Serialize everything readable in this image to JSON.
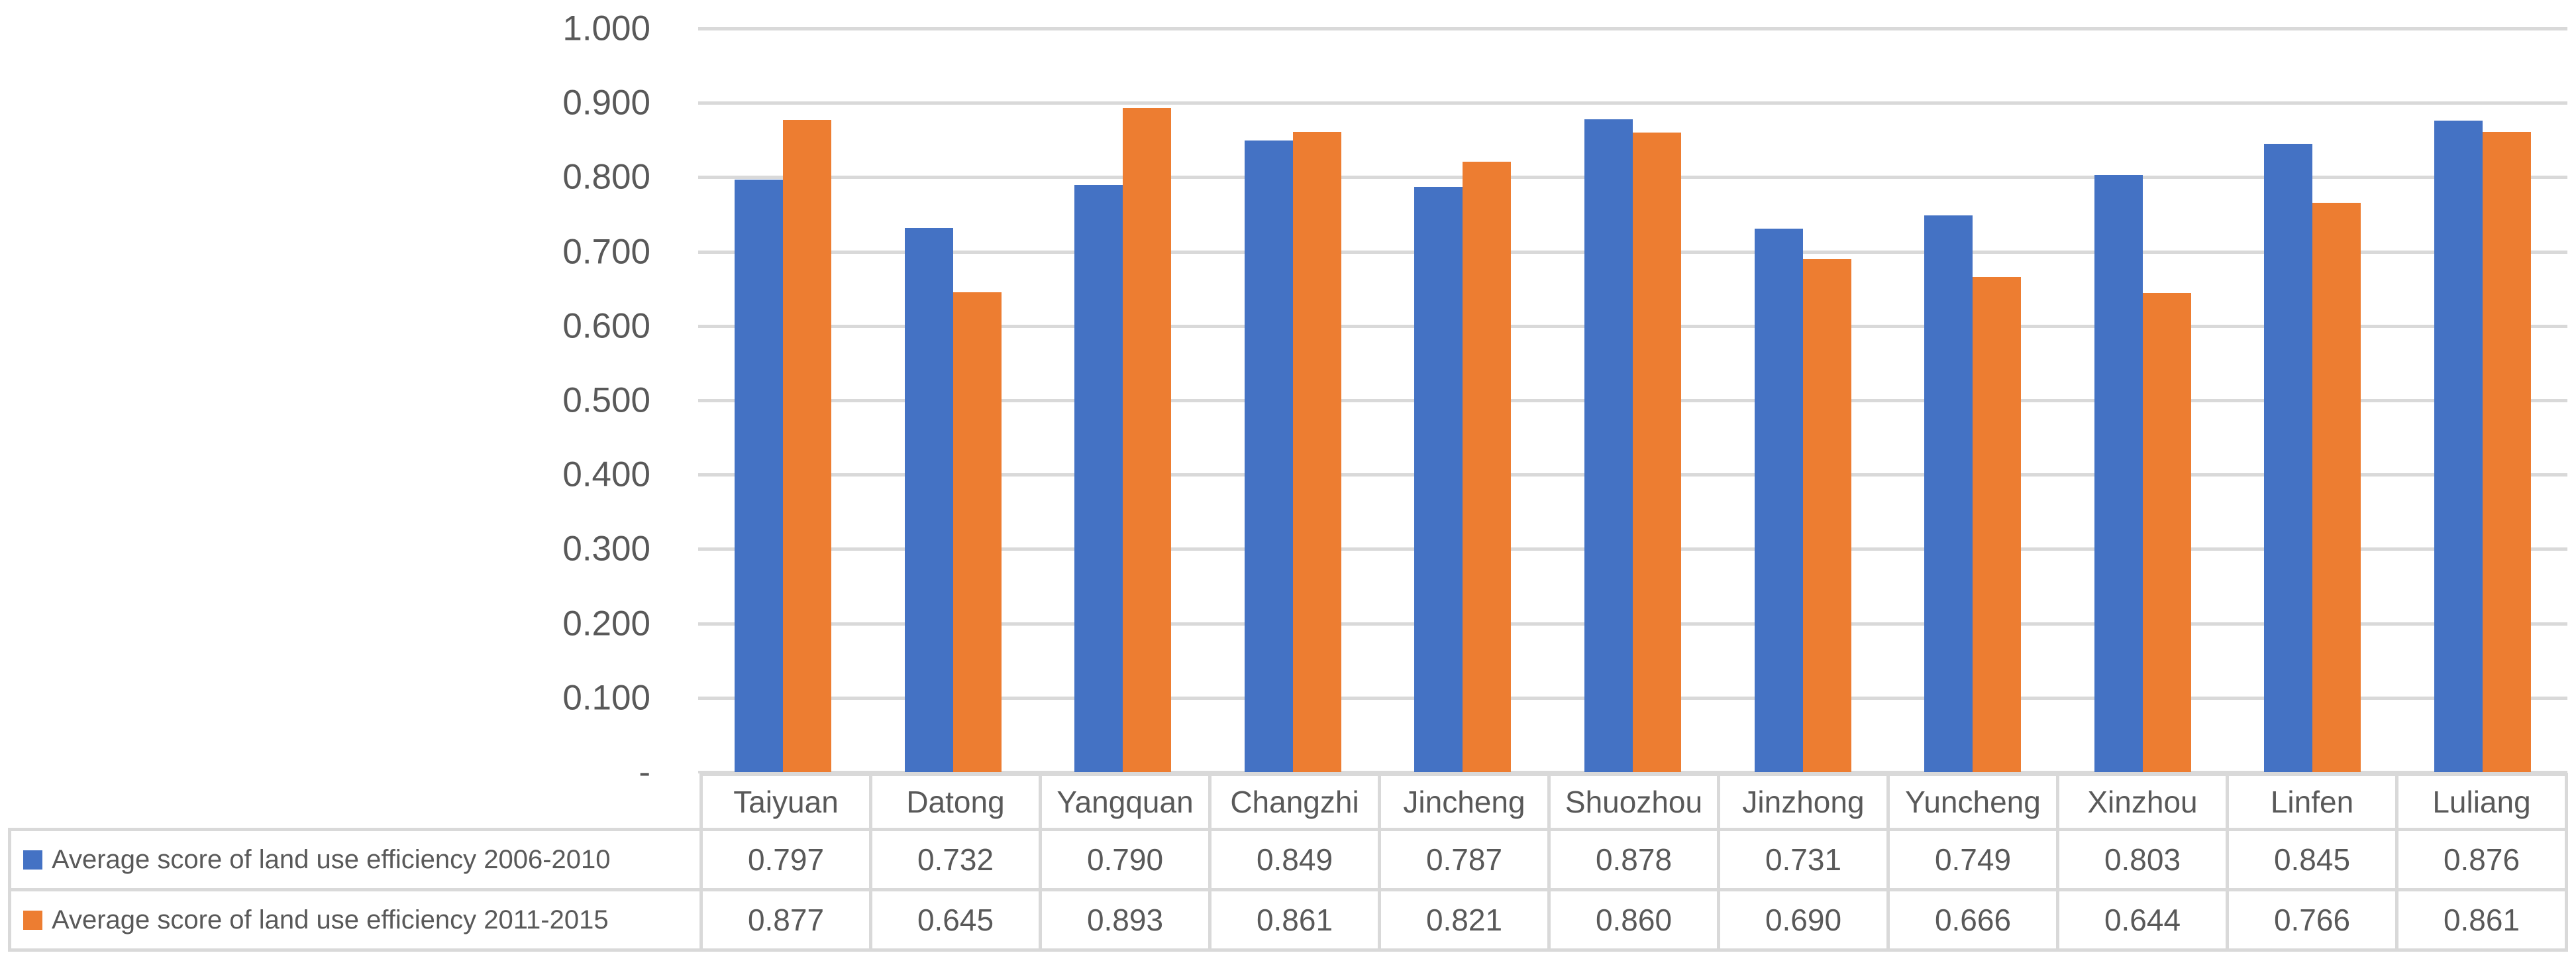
{
  "chart_data": {
    "type": "bar",
    "title": "",
    "xlabel": "",
    "ylabel": "",
    "categories": [
      "Taiyuan",
      "Datong",
      "Yangquan",
      "Changzhi",
      "Jincheng",
      "Shuozhou",
      "Jinzhong",
      "Yuncheng",
      "Xinzhou",
      "Linfen",
      "Luliang"
    ],
    "series": [
      {
        "name": "Average score of land use efficiency 2006-2010",
        "color": "#4472C4",
        "values": [
          0.797,
          0.732,
          0.79,
          0.849,
          0.787,
          0.878,
          0.731,
          0.749,
          0.803,
          0.845,
          0.876
        ]
      },
      {
        "name": "Average score of land use efficiency 2011-2015",
        "color": "#ED7D31",
        "values": [
          0.877,
          0.645,
          0.893,
          0.861,
          0.821,
          0.86,
          0.69,
          0.666,
          0.644,
          0.766,
          0.861
        ]
      }
    ],
    "ylim": [
      0,
      1.0
    ],
    "y_tick_step": 0.1,
    "y_tick_labels": [
      "1.000",
      "0.900",
      "0.800",
      "0.700",
      "0.600",
      "0.500",
      "0.400",
      "0.300",
      "0.200",
      "0.100",
      "-"
    ],
    "grid": true,
    "legend_position": "left-of-data-table",
    "has_data_table": true
  },
  "table": {
    "header_row": [
      "Taiyuan",
      "Datong",
      "Yangquan",
      "Changzhi",
      "Jincheng",
      "Shuozhou",
      "Jinzhong",
      "Yuncheng",
      "Xinzhou",
      "Linfen",
      "Luliang"
    ],
    "rows": [
      {
        "label": "Average score of land use efficiency 2006-2010",
        "swatch_color": "#4472C4",
        "values": [
          "0.797",
          "0.732",
          "0.790",
          "0.849",
          "0.787",
          "0.878",
          "0.731",
          "0.749",
          "0.803",
          "0.845",
          "0.876"
        ]
      },
      {
        "label": "Average score of land use efficiency 2011-2015",
        "swatch_color": "#ED7D31",
        "values": [
          "0.877",
          "0.645",
          "0.893",
          "0.861",
          "0.821",
          "0.860",
          "0.690",
          "0.666",
          "0.644",
          "0.766",
          "0.861"
        ]
      }
    ]
  },
  "colors": {
    "series_2006_2010": "#4472C4",
    "series_2011_2015": "#ED7D31",
    "gridline": "#D9D9D9",
    "table_border": "#D9D9D9",
    "text": "#595959",
    "background": "#FFFFFF"
  }
}
